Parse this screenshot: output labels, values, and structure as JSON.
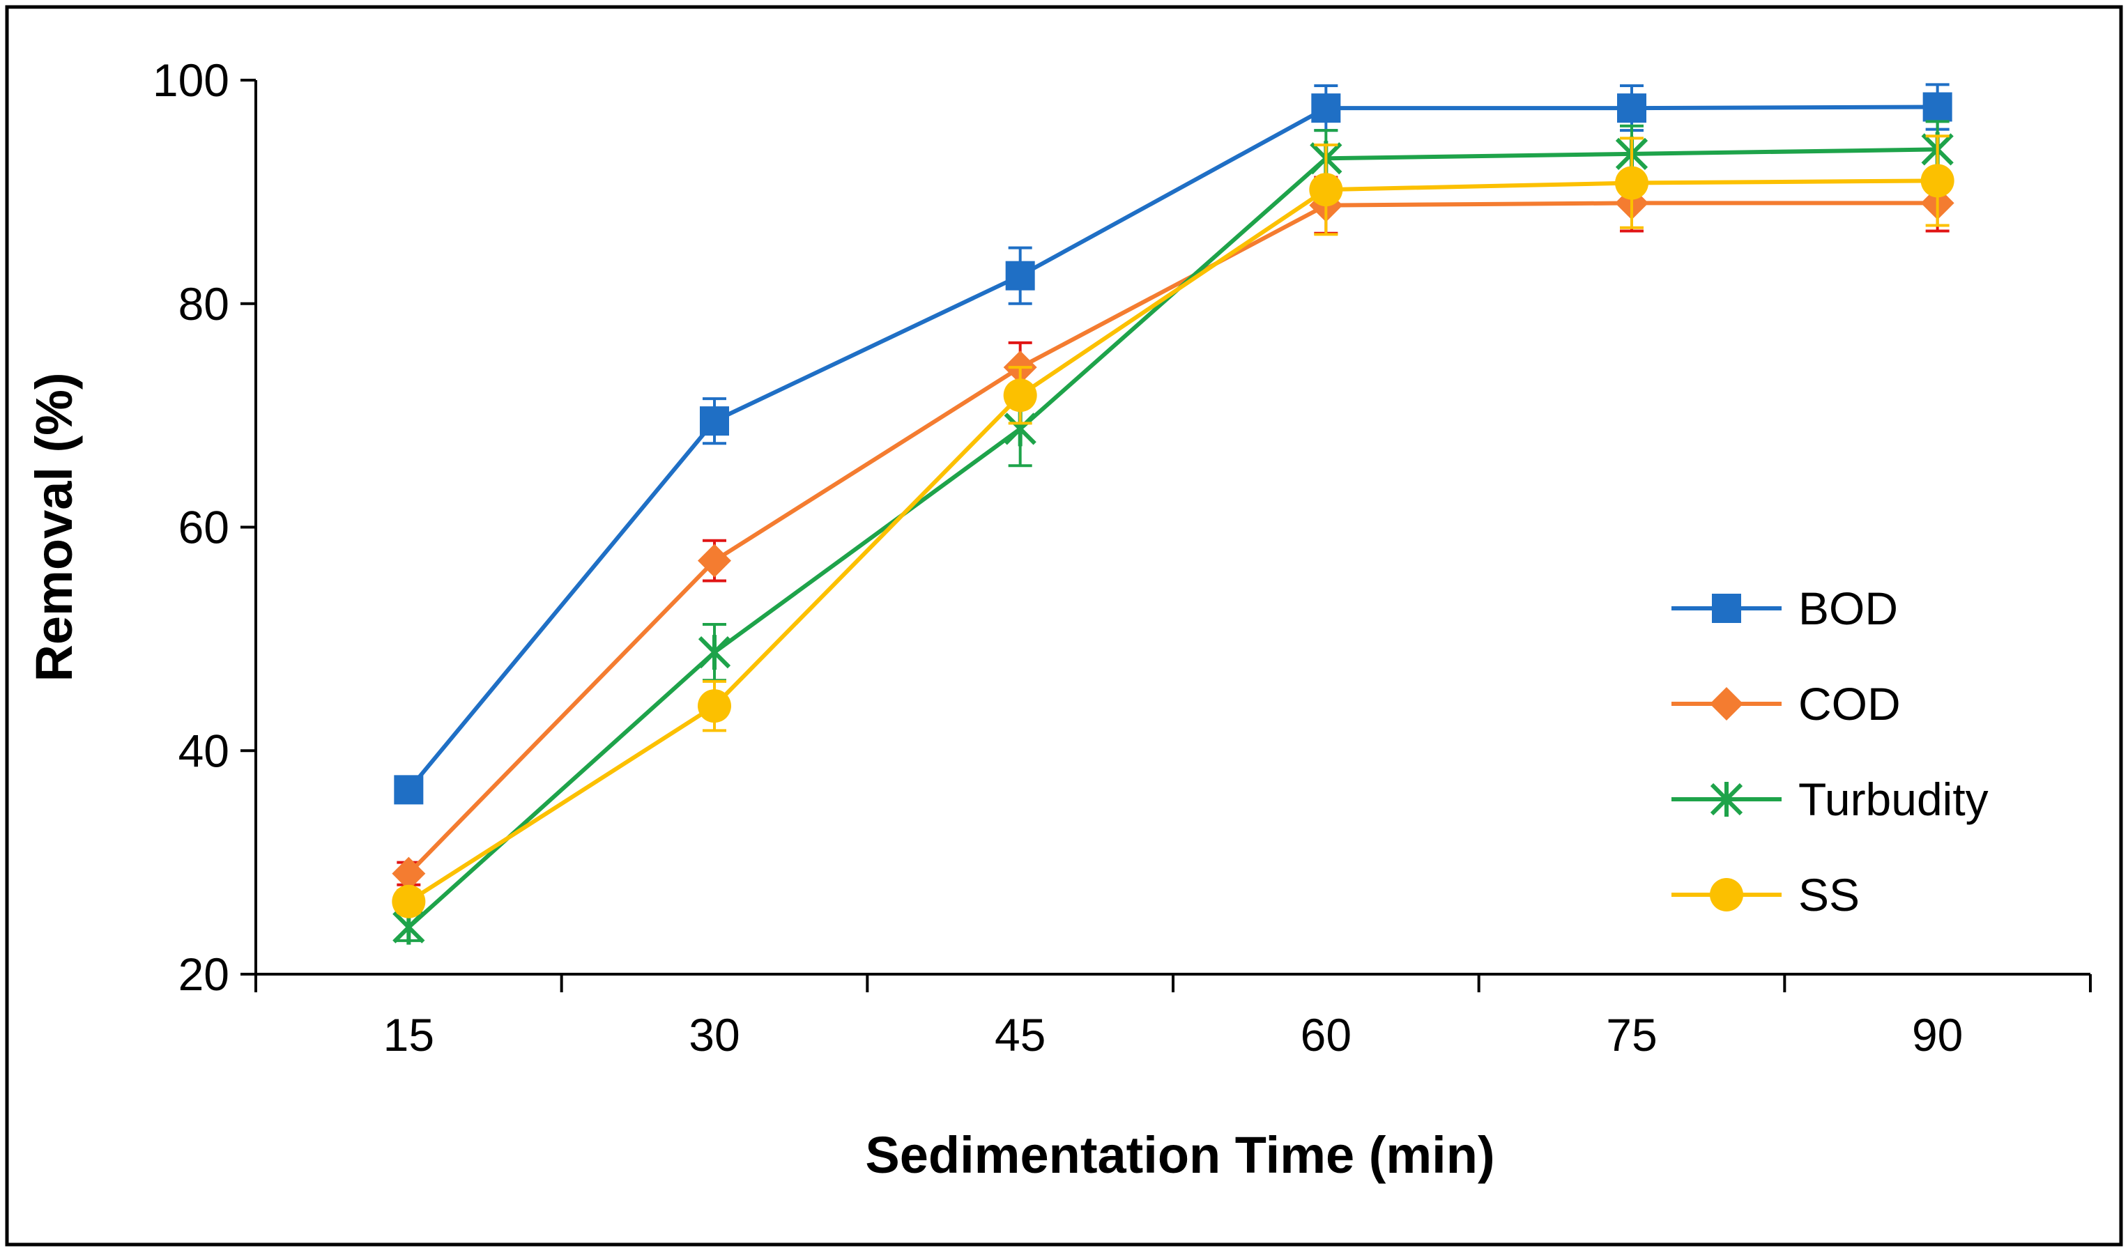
{
  "chart_data": {
    "type": "line",
    "title": "",
    "xlabel": "Sedimentation Time (min)",
    "ylabel": "Removal (%)",
    "categories": [
      "15",
      "30",
      "45",
      "60",
      "75",
      "90"
    ],
    "ylim": [
      20,
      100
    ],
    "yticks": [
      "20",
      "40",
      "60",
      "80",
      "100"
    ],
    "grid": false,
    "legend_position": "right",
    "series": [
      {
        "name": "BOD",
        "color": "#1f6fc5",
        "marker": "square",
        "values": [
          36.5,
          69.5,
          82.5,
          97.5,
          97.5,
          97.6
        ],
        "errors": [
          0.8,
          2.0,
          2.5,
          2.0,
          2.0,
          2.0
        ],
        "error_color": "#1f6fc5"
      },
      {
        "name": "COD",
        "color": "#f47c30",
        "marker": "diamond",
        "values": [
          29.0,
          57.0,
          74.3,
          88.8,
          89.0,
          89.0
        ],
        "errors": [
          1.0,
          1.8,
          2.2,
          2.5,
          2.5,
          2.5
        ],
        "error_color": "#e01414"
      },
      {
        "name": "Turbudity",
        "color": "#1ea34a",
        "marker": "star",
        "values": [
          24.2,
          48.8,
          68.8,
          93.0,
          93.4,
          93.8
        ],
        "errors": [
          1.2,
          2.5,
          3.3,
          2.5,
          2.5,
          2.5
        ],
        "error_color": "#1ea34a"
      },
      {
        "name": "SS",
        "color": "#fcc000",
        "marker": "circle",
        "values": [
          26.5,
          44.0,
          71.8,
          90.2,
          90.8,
          91.0
        ],
        "errors": [
          1.0,
          2.2,
          2.5,
          4.0,
          4.0,
          4.0
        ],
        "error_color": "#fcc000"
      }
    ]
  }
}
